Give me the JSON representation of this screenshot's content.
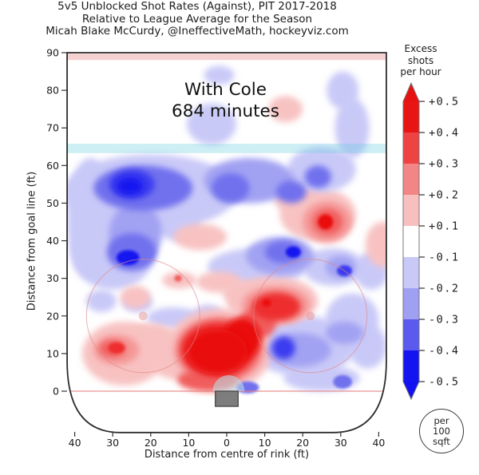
{
  "header": {
    "title": "5v5 Unblocked Shot Rates (Against), PIT 2017-2018",
    "subtitle": "Relative to League Average for the Season",
    "attribution": "Micah Blake McCurdy, @IneffectiveMath, hockeyviz.com"
  },
  "annotation": {
    "line1": "With Cole",
    "line2": "684 minutes"
  },
  "axes": {
    "y": {
      "label": "Distance from goal line (ft)",
      "ticks": [
        0,
        10,
        20,
        30,
        40,
        50,
        60,
        70,
        80,
        90
      ]
    },
    "x": {
      "label": "Distance from centre of rink (ft)",
      "ticks": [
        {
          "label": "40",
          "ft": -40
        },
        {
          "label": "30",
          "ft": -30
        },
        {
          "label": "20",
          "ft": -20
        },
        {
          "label": "10",
          "ft": -10
        },
        {
          "label": "0",
          "ft": 0
        },
        {
          "label": "10",
          "ft": 10
        },
        {
          "label": "20",
          "ft": 20
        },
        {
          "label": "30",
          "ft": 30
        },
        {
          "label": "40",
          "ft": 40
        }
      ]
    }
  },
  "colorbar": {
    "title_lines": [
      "Excess",
      "shots",
      "per hour"
    ],
    "tick_labels": [
      "+0.5",
      "+0.4",
      "+0.3",
      "+0.2",
      "+0.1",
      "-0.1",
      "-0.2",
      "-0.3",
      "-0.4",
      "-0.5"
    ],
    "band_colors": [
      "#e81515",
      "#ee4343",
      "#f28585",
      "#f8bfbf",
      "#ffffff",
      "#c9c9f8",
      "#a0a0f3",
      "#5a5aee",
      "#1414f0"
    ],
    "arrow_top_color": "#e81111",
    "arrow_bottom_color": "#1111f2",
    "outline_color": "#777777"
  },
  "badge": {
    "lines": [
      "per",
      "100",
      "sqft"
    ]
  },
  "rink": {
    "board_color": "#2d2d2d",
    "red_line_band": "#e06666",
    "blue_line_band": "#66ccdd",
    "goal_line": "#e87878",
    "circle_color": "#e08888",
    "dot_color": "#e89898",
    "crease_fill": "#b9e6ef",
    "net_fill": "#7d7d7d",
    "net_stroke": "#4d4d4d"
  },
  "heat_palette": {
    "pos1": "#f8c2c2",
    "pos2": "#f59898",
    "pos3": "#f15d5d",
    "pos4": "#ee2f2f",
    "pos5": "#ea1111",
    "neg1": "#c9c9f8",
    "neg2": "#a2a2f3",
    "neg3": "#7171ee",
    "neg4": "#3a3af0",
    "neg5": "#1313f0"
  },
  "chart_data": {
    "type": "heatmap",
    "title": "5v5 Unblocked Shot Rates (Against), PIT 2017-2018",
    "subtitle": "Relative to League Average for the Season",
    "attribution": "Micah Blake McCurdy, @IneffectiveMath, hockeyviz.com",
    "situation": "With Cole",
    "minutes": 684,
    "value_units": "Excess shots per hour, per 100 sqft",
    "xlabel": "Distance from centre of rink (ft)",
    "ylabel": "Distance from goal line (ft)",
    "x_range_ft": [
      -42,
      42
    ],
    "y_range_ft": [
      0,
      90
    ],
    "scale_range": [
      -0.5,
      0.5
    ],
    "blob_format": [
      "x_ft",
      "y_ft",
      "rx_ft",
      "ry_ft",
      "excess_shots_per_hour"
    ],
    "blobs": [
      [
        -20,
        53,
        23,
        10,
        -0.1
      ],
      [
        -36,
        46,
        6,
        16,
        -0.1
      ],
      [
        -30,
        37,
        11,
        10,
        -0.1
      ],
      [
        -13,
        45,
        6,
        5,
        -0.1
      ],
      [
        -4,
        71,
        6.5,
        5.5,
        -0.1
      ],
      [
        -2,
        84,
        4,
        2.5,
        -0.1
      ],
      [
        33,
        70,
        4.5,
        8,
        -0.1
      ],
      [
        30.5,
        80,
        4.2,
        5,
        -0.1
      ],
      [
        25,
        59,
        9,
        6,
        -0.15
      ],
      [
        6,
        56,
        12,
        6,
        -0.2
      ],
      [
        -22,
        54,
        13,
        6,
        -0.25
      ],
      [
        -25,
        55,
        6,
        4,
        -0.35
      ],
      [
        -25.5,
        54.5,
        3.5,
        2.3,
        -0.45
      ],
      [
        1,
        54,
        5,
        4,
        -0.3
      ],
      [
        17,
        53,
        4,
        3,
        -0.3
      ],
      [
        24,
        57,
        3.5,
        3,
        -0.3
      ],
      [
        -24,
        42,
        7,
        8,
        -0.2
      ],
      [
        -25,
        37,
        6.5,
        5,
        -0.3
      ],
      [
        -26,
        35.5,
        3,
        2,
        -0.45
      ],
      [
        -33,
        24,
        4,
        3,
        -0.1
      ],
      [
        -23.5,
        23.5,
        4,
        2.5,
        -0.1
      ],
      [
        -14,
        19.5,
        7,
        2.8,
        -0.1
      ],
      [
        -5,
        20,
        4,
        3,
        -0.1
      ],
      [
        14,
        36,
        9,
        5,
        -0.2
      ],
      [
        15,
        37,
        5,
        3,
        -0.3
      ],
      [
        17.5,
        37,
        2,
        1.5,
        -0.45
      ],
      [
        8,
        33,
        13,
        5,
        -0.1
      ],
      [
        28,
        33,
        8,
        5,
        -0.1
      ],
      [
        31,
        32,
        2,
        1.5,
        -0.35
      ],
      [
        30,
        33,
        4,
        3,
        -0.2
      ],
      [
        38,
        32,
        4.5,
        5,
        -0.1
      ],
      [
        20,
        12,
        14,
        8,
        -0.1
      ],
      [
        33,
        19,
        7,
        7,
        -0.1
      ],
      [
        25,
        3.5,
        10,
        3.5,
        -0.1
      ],
      [
        37,
        12,
        5,
        6,
        -0.1
      ],
      [
        19,
        11,
        8.5,
        4.5,
        -0.2
      ],
      [
        31,
        15.5,
        5,
        3,
        -0.2
      ],
      [
        15,
        11.5,
        3,
        3,
        -0.35
      ],
      [
        30.5,
        2.5,
        2.5,
        1.8,
        -0.25
      ],
      [
        5.5,
        1,
        3,
        1.6,
        -0.3
      ],
      [
        15.5,
        75,
        4.5,
        3.5,
        0.12
      ],
      [
        24,
        47,
        10,
        7,
        0.1
      ],
      [
        18,
        51,
        5.5,
        3.5,
        0.1
      ],
      [
        26.5,
        45,
        6.5,
        5.5,
        0.2
      ],
      [
        26.5,
        45,
        4,
        3.5,
        0.3
      ],
      [
        26,
        45,
        2,
        2,
        0.45
      ],
      [
        41,
        39,
        4.5,
        6,
        0.1
      ],
      [
        -7,
        41,
        7,
        3.5,
        0.1
      ],
      [
        -12.5,
        29.5,
        4.5,
        2.2,
        0.1
      ],
      [
        -12.8,
        30,
        1,
        0.9,
        0.3
      ],
      [
        -24,
        25,
        4,
        3,
        0.12
      ],
      [
        -2,
        29,
        6,
        2.8,
        0.1
      ],
      [
        5,
        26,
        6,
        3,
        0.1
      ],
      [
        12,
        24,
        12,
        6.5,
        0.1
      ],
      [
        13,
        23,
        9,
        5,
        0.2
      ],
      [
        13,
        22.5,
        6.5,
        3.8,
        0.35
      ],
      [
        10.5,
        23.5,
        1.2,
        1,
        0.5
      ],
      [
        -27,
        10,
        11,
        8.5,
        0.1
      ],
      [
        -20,
        14.5,
        6.5,
        3.5,
        0.12
      ],
      [
        -29,
        11,
        6,
        4,
        0.2
      ],
      [
        -30,
        11.3,
        3.5,
        2.3,
        0.3
      ],
      [
        -29,
        11.5,
        2.2,
        1.5,
        0.35
      ],
      [
        -12,
        9,
        9,
        6,
        0.1
      ],
      [
        -2,
        11,
        14,
        11,
        0.1
      ],
      [
        -2,
        11,
        12,
        9,
        0.2
      ],
      [
        -2,
        11,
        10.5,
        8,
        0.3
      ],
      [
        -2.5,
        11,
        9.5,
        7,
        0.4
      ],
      [
        -2.5,
        10.5,
        8,
        6,
        0.5
      ],
      [
        4,
        14,
        5,
        5.5,
        0.45
      ],
      [
        8,
        18,
        5,
        4,
        0.3
      ],
      [
        -5,
        3,
        8,
        3,
        0.3
      ]
    ]
  }
}
